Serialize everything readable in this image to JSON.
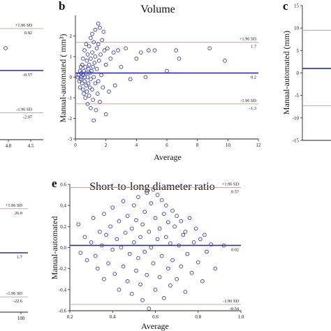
{
  "chart_data": [
    {
      "panel": "a",
      "type": "scatter",
      "letter": "",
      "title": "",
      "xlabel": "",
      "ylabel": "",
      "xticks": [
        "4.0",
        "4.5"
      ],
      "mean_line": {
        "value": -0.57,
        "label": "-0.57"
      },
      "upper_loa": {
        "label": "+1.96 SD",
        "value": 0.92,
        "value_label": "0.92"
      },
      "lower_loa": {
        "label": "-1.96 SD",
        "value": -2.07,
        "value_label": "-2.07"
      },
      "points_visible": 1,
      "grid": false,
      "legend": "none"
    },
    {
      "panel": "b",
      "type": "scatter",
      "letter": "b",
      "title": "Volume",
      "xlabel": "Average",
      "ylabel": "Manual-automated ( mm³)",
      "xlim": [
        0,
        12
      ],
      "ylim": [
        -3,
        3
      ],
      "xticks": [
        "0",
        "2",
        "4",
        "6",
        "8",
        "10",
        "12"
      ],
      "yticks": [
        "-3",
        "-2",
        "-1",
        "0",
        "1",
        "2"
      ],
      "mean_line": {
        "value": 0.2,
        "label": "0.2"
      },
      "upper_loa": {
        "label": "+1.96 SD",
        "value": 1.7,
        "value_label": "1.7"
      },
      "lower_loa": {
        "label": "-1.96 SD",
        "value": -1.3,
        "value_label": "-1.3"
      },
      "points": [
        [
          0.2,
          0.1
        ],
        [
          0.25,
          -0.2
        ],
        [
          0.3,
          0.3
        ],
        [
          0.3,
          -0.5
        ],
        [
          0.35,
          0.5
        ],
        [
          0.35,
          -0.1
        ],
        [
          0.4,
          0.0
        ],
        [
          0.4,
          0.2
        ],
        [
          0.45,
          -0.3
        ],
        [
          0.45,
          0.6
        ],
        [
          0.5,
          0.9
        ],
        [
          0.5,
          -0.6
        ],
        [
          0.5,
          0.1
        ],
        [
          0.55,
          0.3
        ],
        [
          0.55,
          -0.8
        ],
        [
          0.6,
          1.3
        ],
        [
          0.6,
          0.0
        ],
        [
          0.6,
          -0.2
        ],
        [
          0.65,
          0.5
        ],
        [
          0.65,
          -1.0
        ],
        [
          0.7,
          1.6
        ],
        [
          0.7,
          0.2
        ],
        [
          0.7,
          -0.4
        ],
        [
          0.75,
          0.8
        ],
        [
          0.75,
          -0.7
        ],
        [
          0.8,
          1.1
        ],
        [
          0.8,
          0.0
        ],
        [
          0.8,
          -1.3
        ],
        [
          0.85,
          0.4
        ],
        [
          0.85,
          -0.3
        ],
        [
          0.9,
          1.5
        ],
        [
          0.9,
          0.6
        ],
        [
          0.9,
          -0.9
        ],
        [
          0.95,
          0.2
        ],
        [
          0.95,
          -0.5
        ],
        [
          1.0,
          1.9
        ],
        [
          1.0,
          0.9
        ],
        [
          1.0,
          -0.1
        ],
        [
          1.0,
          -1.5
        ],
        [
          1.05,
          0.3
        ],
        [
          1.1,
          2.1
        ],
        [
          1.1,
          1.2
        ],
        [
          1.1,
          -0.6
        ],
        [
          1.15,
          0.5
        ],
        [
          1.15,
          -1.1
        ],
        [
          1.2,
          1.7
        ],
        [
          1.2,
          0.0
        ],
        [
          1.2,
          -2.1
        ],
        [
          1.25,
          0.7
        ],
        [
          1.3,
          2.3
        ],
        [
          1.3,
          1.0
        ],
        [
          1.3,
          -0.3
        ],
        [
          1.35,
          -1.6
        ],
        [
          1.4,
          1.4
        ],
        [
          1.4,
          0.4
        ],
        [
          1.45,
          -0.8
        ],
        [
          1.5,
          2.6
        ],
        [
          1.5,
          1.6
        ],
        [
          1.5,
          -0.2
        ],
        [
          1.55,
          0.8
        ],
        [
          1.6,
          2.4
        ],
        [
          1.6,
          -1.2
        ],
        [
          1.65,
          1.1
        ],
        [
          1.7,
          0.1
        ],
        [
          1.75,
          1.8
        ],
        [
          1.8,
          -0.5
        ],
        [
          1.85,
          2.2
        ],
        [
          1.9,
          1.3
        ],
        [
          2.0,
          0.6
        ],
        [
          2.0,
          -1.8
        ],
        [
          2.1,
          1.4
        ],
        [
          2.2,
          -0.7
        ],
        [
          2.3,
          0.9
        ],
        [
          2.5,
          1.2
        ],
        [
          2.6,
          -0.4
        ],
        [
          2.8,
          1.3
        ],
        [
          3.0,
          0.5
        ],
        [
          3.3,
          1.4
        ],
        [
          3.6,
          -0.1
        ],
        [
          4.0,
          0.9
        ],
        [
          4.3,
          1.2
        ],
        [
          4.6,
          0.0
        ],
        [
          4.8,
          1.3
        ],
        [
          5.2,
          1.3
        ],
        [
          6.0,
          0.3
        ],
        [
          6.6,
          1.3
        ],
        [
          6.8,
          0.9
        ],
        [
          8.8,
          1.4
        ],
        [
          9.8,
          0.8
        ],
        [
          0.15,
          0.0
        ]
      ],
      "grid": false,
      "legend": "none"
    },
    {
      "panel": "c",
      "type": "scatter",
      "letter": "c",
      "title": "",
      "xlabel": "",
      "ylabel": "Manual-automated (mm)",
      "ylim": [
        -15,
        15
      ],
      "yticks": [
        "-15",
        "-10",
        "-5",
        "0",
        "5",
        "10",
        "15"
      ],
      "mean_line": {
        "value": 1.0
      },
      "upper_loa": {
        "value": 9.5
      },
      "lower_loa": {
        "value": -7.3
      },
      "points": [],
      "grid": false,
      "legend": "none"
    },
    {
      "panel": "d",
      "type": "scatter",
      "letter": "",
      "title": "",
      "xlabel": "",
      "ylabel": "",
      "xticks": [
        "100"
      ],
      "mean_line": {
        "value": 1.7,
        "label": "1.7"
      },
      "upper_loa": {
        "label": "+1.96 SD",
        "value": 26.0,
        "value_label": "26.0"
      },
      "lower_loa": {
        "label": "-1.96 SD",
        "value": -22.6,
        "value_label": "-22.6"
      },
      "points": [],
      "grid": false,
      "legend": "none"
    },
    {
      "panel": "e",
      "type": "scatter",
      "letter": "e",
      "title": "Short-to-long diameter ratio",
      "xlabel": "Average",
      "ylabel": "Manual-automated",
      "xlim": [
        0.2,
        1.0
      ],
      "ylim": [
        -0.6,
        0.6
      ],
      "xticks": [
        "0.2",
        "0.4",
        "0.6",
        "0.8",
        "1.0"
      ],
      "yticks": [
        "-0.6",
        "-0.4",
        "-0.2",
        "0.0",
        "0.2",
        "0.4",
        "0.6"
      ],
      "mean_line": {
        "value": 0.02,
        "label": "0.02"
      },
      "upper_loa": {
        "label": "+1.96 SD",
        "value": 0.57,
        "value_label": "0.57"
      },
      "lower_loa": {
        "label": "-1.96 SD",
        "value": -0.54,
        "value_label": "-0.54"
      },
      "points": [
        [
          0.24,
          0.22
        ],
        [
          0.25,
          -0.05
        ],
        [
          0.27,
          0.1
        ],
        [
          0.28,
          -0.12
        ],
        [
          0.3,
          0.05
        ],
        [
          0.31,
          0.28
        ],
        [
          0.32,
          -0.08
        ],
        [
          0.33,
          -0.2
        ],
        [
          0.34,
          0.15
        ],
        [
          0.35,
          0.02
        ],
        [
          0.36,
          -0.3
        ],
        [
          0.36,
          0.32
        ],
        [
          0.37,
          0.12
        ],
        [
          0.38,
          -0.15
        ],
        [
          0.39,
          0.2
        ],
        [
          0.4,
          -0.02
        ],
        [
          0.4,
          0.38
        ],
        [
          0.41,
          -0.25
        ],
        [
          0.42,
          0.08
        ],
        [
          0.43,
          -0.4
        ],
        [
          0.43,
          0.25
        ],
        [
          0.44,
          0.0
        ],
        [
          0.45,
          0.44
        ],
        [
          0.45,
          -0.18
        ],
        [
          0.46,
          0.14
        ],
        [
          0.47,
          -0.32
        ],
        [
          0.47,
          0.3
        ],
        [
          0.48,
          -0.06
        ],
        [
          0.49,
          0.18
        ],
        [
          0.49,
          -0.44
        ],
        [
          0.5,
          0.4
        ],
        [
          0.5,
          0.05
        ],
        [
          0.51,
          -0.22
        ],
        [
          0.51,
          0.26
        ],
        [
          0.52,
          -0.1
        ],
        [
          0.52,
          0.48
        ],
        [
          0.53,
          0.1
        ],
        [
          0.53,
          -0.35
        ],
        [
          0.54,
          0.22
        ],
        [
          0.54,
          -0.5
        ],
        [
          0.55,
          0.34
        ],
        [
          0.55,
          -0.04
        ],
        [
          0.56,
          0.52
        ],
        [
          0.56,
          -0.26
        ],
        [
          0.57,
          0.15
        ],
        [
          0.57,
          -0.58
        ],
        [
          0.58,
          0.42
        ],
        [
          0.58,
          0.0
        ],
        [
          0.59,
          -0.15
        ],
        [
          0.59,
          0.55
        ],
        [
          0.6,
          0.28
        ],
        [
          0.6,
          -0.4
        ],
        [
          0.61,
          0.08
        ],
        [
          0.61,
          0.5
        ],
        [
          0.62,
          -0.28
        ],
        [
          0.62,
          0.18
        ],
        [
          0.63,
          0.45
        ],
        [
          0.63,
          -0.08
        ],
        [
          0.64,
          0.32
        ],
        [
          0.64,
          -0.48
        ],
        [
          0.65,
          0.1
        ],
        [
          0.65,
          0.4
        ],
        [
          0.66,
          -0.2
        ],
        [
          0.66,
          0.24
        ],
        [
          0.67,
          -0.36
        ],
        [
          0.67,
          0.04
        ],
        [
          0.68,
          0.35
        ],
        [
          0.68,
          -0.12
        ],
        [
          0.69,
          0.2
        ],
        [
          0.7,
          -0.3
        ],
        [
          0.7,
          0.3
        ],
        [
          0.71,
          0.02
        ],
        [
          0.72,
          -0.18
        ],
        [
          0.72,
          0.25
        ],
        [
          0.73,
          0.12
        ],
        [
          0.74,
          -0.42
        ],
        [
          0.74,
          0.15
        ],
        [
          0.75,
          -0.06
        ],
        [
          0.76,
          0.28
        ],
        [
          0.77,
          -0.24
        ],
        [
          0.78,
          0.05
        ],
        [
          0.79,
          0.18
        ],
        [
          0.8,
          -0.14
        ],
        [
          0.81,
          0.08
        ],
        [
          0.82,
          -0.32
        ],
        [
          0.83,
          0.12
        ],
        [
          0.84,
          -0.04
        ],
        [
          0.86,
          0.03
        ],
        [
          0.88,
          -0.2
        ],
        [
          0.92,
          0.02
        ]
      ],
      "grid": false,
      "legend": "none"
    }
  ]
}
